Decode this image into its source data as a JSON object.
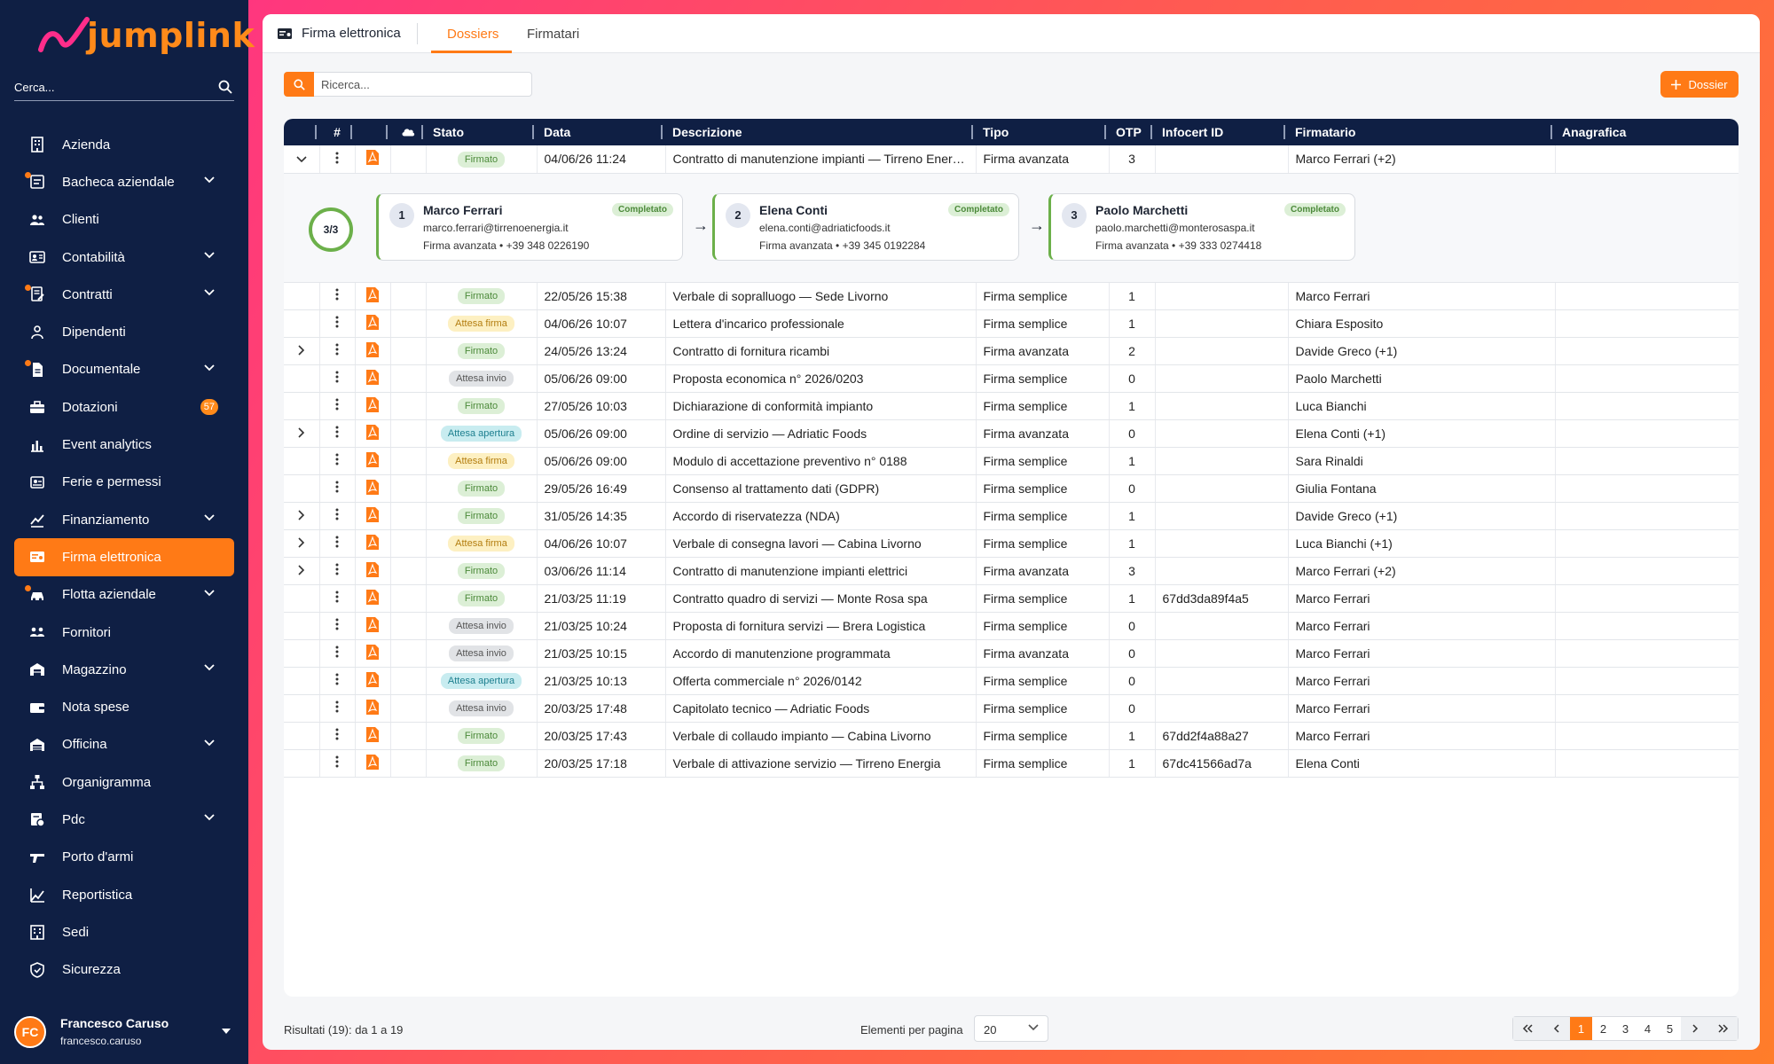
{
  "brand": {
    "name": "jumplink",
    "accent": "#ff7a16",
    "sidebar_bg": "#0f1f44"
  },
  "sidebar": {
    "search_placeholder": "Cerca...",
    "items": [
      {
        "label": "Azienda",
        "icon": "building-icon",
        "chevron": false,
        "dot": false
      },
      {
        "label": "Bacheca aziendale",
        "icon": "board-icon",
        "chevron": true,
        "dot": true
      },
      {
        "label": "Clienti",
        "icon": "people-icon",
        "chevron": false,
        "dot": false
      },
      {
        "label": "Contabilità",
        "icon": "contacts-icon",
        "chevron": true,
        "dot": false
      },
      {
        "label": "Contratti",
        "icon": "contract-icon",
        "chevron": true,
        "dot": true
      },
      {
        "label": "Dipendenti",
        "icon": "employees-icon",
        "chevron": false,
        "dot": false
      },
      {
        "label": "Documentale",
        "icon": "document-icon",
        "chevron": true,
        "dot": true
      },
      {
        "label": "Dotazioni",
        "icon": "toolbox-icon",
        "chevron": false,
        "dot": false,
        "badge": "57"
      },
      {
        "label": "Event analytics",
        "icon": "bar-chart-icon",
        "chevron": false,
        "dot": false
      },
      {
        "label": "Ferie e permessi",
        "icon": "leave-icon",
        "chevron": false,
        "dot": false
      },
      {
        "label": "Finanziamento",
        "icon": "finance-icon",
        "chevron": true,
        "dot": false
      },
      {
        "label": "Firma elettronica",
        "icon": "signature-icon",
        "chevron": false,
        "dot": false,
        "active": true
      },
      {
        "label": "Flotta aziendale",
        "icon": "car-icon",
        "chevron": true,
        "dot": true
      },
      {
        "label": "Fornitori",
        "icon": "suppliers-icon",
        "chevron": false,
        "dot": false
      },
      {
        "label": "Magazzino",
        "icon": "warehouse-icon",
        "chevron": true,
        "dot": false
      },
      {
        "label": "Nota spese",
        "icon": "wallet-icon",
        "chevron": false,
        "dot": false
      },
      {
        "label": "Officina",
        "icon": "garage-icon",
        "chevron": true,
        "dot": false
      },
      {
        "label": "Organigramma",
        "icon": "org-chart-icon",
        "chevron": false,
        "dot": false
      },
      {
        "label": "Pdc",
        "icon": "pdc-icon",
        "chevron": true,
        "dot": false
      },
      {
        "label": "Porto d'armi",
        "icon": "gun-icon",
        "chevron": false,
        "dot": false
      },
      {
        "label": "Reportistica",
        "icon": "report-icon",
        "chevron": false,
        "dot": false
      },
      {
        "label": "Sedi",
        "icon": "office-icon",
        "chevron": false,
        "dot": false
      },
      {
        "label": "Sicurezza",
        "icon": "shield-icon",
        "chevron": false,
        "dot": false
      }
    ],
    "user": {
      "initials": "FC",
      "name": "Francesco Caruso",
      "username": "francesco.caruso"
    }
  },
  "header": {
    "section_title": "Firma elettronica",
    "tabs": [
      {
        "label": "Dossiers",
        "active": true
      },
      {
        "label": "Firmatari",
        "active": false
      }
    ]
  },
  "toolbar": {
    "search_placeholder": "Ricerca...",
    "add_label": "Dossier"
  },
  "table": {
    "columns": [
      "",
      "#",
      "",
      "",
      "Stato",
      "Data",
      "Descrizione",
      "Tipo",
      "OTP",
      "Infocert ID",
      "Firmatario",
      "Anagrafica"
    ],
    "rows": [
      {
        "expander": "open",
        "stato": "Firmato",
        "status": "firmato",
        "data": "04/06/26 11:24",
        "descrizione": "Contratto di manutenzione impianti — Tirreno Energia",
        "tipo": "Firma avanzata",
        "otp": "3",
        "infocert": "",
        "firmatario": "Marco Ferrari (+2)",
        "anagrafica": ""
      },
      {
        "expander": "",
        "stato": "Firmato",
        "status": "firmato",
        "data": "22/05/26 15:38",
        "descrizione": "Verbale di sopralluogo — Sede Livorno",
        "tipo": "Firma semplice",
        "otp": "1",
        "infocert": "",
        "firmatario": "Marco Ferrari",
        "anagrafica": ""
      },
      {
        "expander": "",
        "stato": "Attesa firma",
        "status": "attesa-firma",
        "data": "04/06/26 10:07",
        "descrizione": "Lettera d'incarico professionale",
        "tipo": "Firma semplice",
        "otp": "1",
        "infocert": "",
        "firmatario": "Chiara Esposito",
        "anagrafica": ""
      },
      {
        "expander": "closed",
        "stato": "Firmato",
        "status": "firmato",
        "data": "24/05/26 13:24",
        "descrizione": "Contratto di fornitura ricambi",
        "tipo": "Firma avanzata",
        "otp": "2",
        "infocert": "",
        "firmatario": "Davide Greco (+1)",
        "anagrafica": ""
      },
      {
        "expander": "",
        "stato": "Attesa invio",
        "status": "attesa-invio",
        "data": "05/06/26 09:00",
        "descrizione": "Proposta economica n° 2026/0203",
        "tipo": "Firma semplice",
        "otp": "0",
        "infocert": "",
        "firmatario": "Paolo Marchetti",
        "anagrafica": ""
      },
      {
        "expander": "",
        "stato": "Firmato",
        "status": "firmato",
        "data": "27/05/26 10:03",
        "descrizione": "Dichiarazione di conformità impianto",
        "tipo": "Firma semplice",
        "otp": "1",
        "infocert": "",
        "firmatario": "Luca Bianchi",
        "anagrafica": ""
      },
      {
        "expander": "closed",
        "stato": "Attesa apertura",
        "status": "attesa-apertura",
        "data": "05/06/26 09:00",
        "descrizione": "Ordine di servizio — Adriatic Foods",
        "tipo": "Firma avanzata",
        "otp": "0",
        "infocert": "",
        "firmatario": "Elena Conti (+1)",
        "anagrafica": ""
      },
      {
        "expander": "",
        "stato": "Attesa firma",
        "status": "attesa-firma",
        "data": "05/06/26 09:00",
        "descrizione": "Modulo di accettazione preventivo n° 0188",
        "tipo": "Firma semplice",
        "otp": "1",
        "infocert": "",
        "firmatario": "Sara Rinaldi",
        "anagrafica": ""
      },
      {
        "expander": "",
        "stato": "Firmato",
        "status": "firmato",
        "data": "29/05/26 16:49",
        "descrizione": "Consenso al trattamento dati (GDPR)",
        "tipo": "Firma semplice",
        "otp": "0",
        "infocert": "",
        "firmatario": "Giulia Fontana",
        "anagrafica": ""
      },
      {
        "expander": "closed",
        "stato": "Firmato",
        "status": "firmato",
        "data": "31/05/26 14:35",
        "descrizione": "Accordo di riservatezza (NDA)",
        "tipo": "Firma semplice",
        "otp": "1",
        "infocert": "",
        "firmatario": "Davide Greco (+1)",
        "anagrafica": ""
      },
      {
        "expander": "closed",
        "stato": "Attesa firma",
        "status": "attesa-firma",
        "data": "04/06/26 10:07",
        "descrizione": "Verbale di consegna lavori — Cabina Livorno",
        "tipo": "Firma semplice",
        "otp": "1",
        "infocert": "",
        "firmatario": "Luca Bianchi (+1)",
        "anagrafica": ""
      },
      {
        "expander": "closed",
        "stato": "Firmato",
        "status": "firmato",
        "data": "03/06/26 11:14",
        "descrizione": "Contratto di manutenzione impianti elettrici",
        "tipo": "Firma avanzata",
        "otp": "3",
        "infocert": "",
        "firmatario": "Marco Ferrari (+2)",
        "anagrafica": ""
      },
      {
        "expander": "",
        "stato": "Firmato",
        "status": "firmato",
        "data": "21/03/25 11:19",
        "descrizione": "Contratto quadro di servizi — Monte Rosa spa",
        "tipo": "Firma semplice",
        "otp": "1",
        "infocert": "67dd3da89f4a5",
        "firmatario": "Marco Ferrari",
        "anagrafica": ""
      },
      {
        "expander": "",
        "stato": "Attesa invio",
        "status": "attesa-invio",
        "data": "21/03/25 10:24",
        "descrizione": "Proposta di fornitura servizi — Brera Logistica",
        "tipo": "Firma semplice",
        "otp": "0",
        "infocert": "",
        "firmatario": "Marco Ferrari",
        "anagrafica": ""
      },
      {
        "expander": "",
        "stato": "Attesa invio",
        "status": "attesa-invio",
        "data": "21/03/25 10:15",
        "descrizione": "Accordo di manutenzione programmata",
        "tipo": "Firma avanzata",
        "otp": "0",
        "infocert": "",
        "firmatario": "Marco Ferrari",
        "anagrafica": ""
      },
      {
        "expander": "",
        "stato": "Attesa apertura",
        "status": "attesa-apertura",
        "data": "21/03/25 10:13",
        "descrizione": "Offerta commerciale n° 2026/0142",
        "tipo": "Firma semplice",
        "otp": "0",
        "infocert": "",
        "firmatario": "Marco Ferrari",
        "anagrafica": ""
      },
      {
        "expander": "",
        "stato": "Attesa invio",
        "status": "attesa-invio",
        "data": "20/03/25 17:48",
        "descrizione": "Capitolato tecnico — Adriatic Foods",
        "tipo": "Firma semplice",
        "otp": "0",
        "infocert": "",
        "firmatario": "Marco Ferrari",
        "anagrafica": ""
      },
      {
        "expander": "",
        "stato": "Firmato",
        "status": "firmato",
        "data": "20/03/25 17:43",
        "descrizione": "Verbale di collaudo impianto — Cabina Livorno",
        "tipo": "Firma semplice",
        "otp": "1",
        "infocert": "67dd2f4a88a27",
        "firmatario": "Marco Ferrari",
        "anagrafica": ""
      },
      {
        "expander": "",
        "stato": "Firmato",
        "status": "firmato",
        "data": "20/03/25 17:18",
        "descrizione": "Verbale di attivazione servizio — Tirreno Energia",
        "tipo": "Firma semplice",
        "otp": "1",
        "infocert": "67dc41566ad7a",
        "firmatario": "Elena Conti",
        "anagrafica": ""
      }
    ],
    "expanded": {
      "progress": "3/3",
      "signers": [
        {
          "num": "1",
          "name": "Marco Ferrari",
          "email": "marco.ferrari@tirrenoenergia.it",
          "info": "Firma avanzata • +39 348 0226190",
          "status": "Completato"
        },
        {
          "num": "2",
          "name": "Elena Conti",
          "email": "elena.conti@adriaticfoods.it",
          "info": "Firma avanzata • +39 345 0192284",
          "status": "Completato"
        },
        {
          "num": "3",
          "name": "Paolo Marchetti",
          "email": "paolo.marchetti@monterosaspa.it",
          "info": "Firma avanzata • +39 333 0274418",
          "status": "Completato"
        }
      ]
    }
  },
  "footer": {
    "results": "Risultati (19): da 1 a 19",
    "per_page_label": "Elementi per pagina",
    "per_page_value": "20",
    "pages": [
      "1",
      "2",
      "3",
      "4",
      "5"
    ],
    "current_page": "1"
  }
}
